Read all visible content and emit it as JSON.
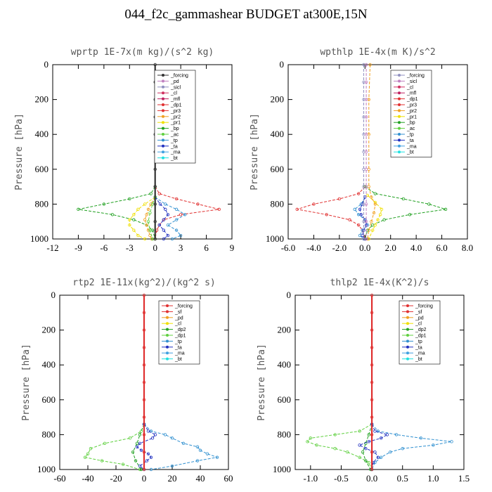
{
  "page_title": "044_f2c_gammashear  BUDGET at300E,15N",
  "chart_data": [
    {
      "type": "line",
      "title": "wprtp  1E-7x(m kg)/(s^2 kg)",
      "xlabel": "",
      "ylabel": "Pressure [hPa]",
      "xlim": [
        -12,
        9
      ],
      "ylim": [
        1000,
        0
      ],
      "xticks": [
        -12,
        -9,
        -6,
        -3,
        0,
        3,
        6,
        9
      ],
      "xtick_labels": [
        "-12",
        "-9",
        "-6",
        "-3",
        "0",
        "3",
        "6",
        "9"
      ],
      "yticks": [
        0,
        200,
        400,
        600,
        800,
        1000
      ],
      "ytick_labels": [
        "0",
        "200",
        "400",
        "600",
        "800",
        "1000"
      ],
      "legend_position": "top-right",
      "legend": [
        {
          "name": "_forcing",
          "color": "#333333"
        },
        {
          "name": "_pd",
          "color": "#c080c0"
        },
        {
          "name": "_sicl",
          "color": "#9090c0"
        },
        {
          "name": "_cl",
          "color": "#d03060"
        },
        {
          "name": "_mfl",
          "color": "#c02060"
        },
        {
          "name": "_dp1",
          "color": "#e03030"
        },
        {
          "name": "_pr3",
          "color": "#e03030"
        },
        {
          "name": "_pr2",
          "color": "#f0a020"
        },
        {
          "name": "_pr1",
          "color": "#f0e000"
        },
        {
          "name": "_bp",
          "color": "#20a020"
        },
        {
          "name": "_ac",
          "color": "#60d040"
        },
        {
          "name": "_tp",
          "color": "#3090d0"
        },
        {
          "name": "_ta",
          "color": "#2030c0"
        },
        {
          "name": "_ma",
          "color": "#40a0e0"
        },
        {
          "name": "_bt",
          "color": "#20e0e0"
        }
      ],
      "series": [
        {
          "name": "_dp1",
          "color": "#e03030",
          "p": [
            700,
            740,
            770,
            800,
            830,
            860,
            890,
            920,
            950,
            1000
          ],
          "x": [
            0,
            0.5,
            2.5,
            5,
            7.5,
            3,
            1,
            0.5,
            0.2,
            0
          ]
        },
        {
          "name": "_bp",
          "color": "#20a020",
          "p": [
            700,
            740,
            770,
            800,
            830,
            860,
            890,
            920,
            950,
            1000
          ],
          "x": [
            0,
            -0.5,
            -3,
            -6,
            -9,
            -5,
            -2.5,
            -1,
            -0.3,
            0
          ]
        },
        {
          "name": "_pr1",
          "color": "#f0e000",
          "p": [
            760,
            800,
            830,
            860,
            890,
            920,
            950,
            980,
            1000
          ],
          "x": [
            0,
            -1.2,
            -2,
            -2.5,
            -3,
            -3,
            -2.5,
            -2,
            -1.2
          ]
        },
        {
          "name": "_pr2",
          "color": "#f0a020",
          "p": [
            760,
            800,
            830,
            860,
            890,
            920,
            950,
            980,
            1000
          ],
          "x": [
            0,
            -0.5,
            -0.8,
            -1,
            -1.2,
            -1,
            -0.8,
            -0.6,
            -0.4
          ]
        },
        {
          "name": "_tp",
          "color": "#3090d0",
          "p": [
            760,
            800,
            830,
            860,
            890,
            920,
            950,
            980,
            1000
          ],
          "x": [
            0,
            1.2,
            2.5,
            3.5,
            2.5,
            1.5,
            2.5,
            3,
            2
          ]
        },
        {
          "name": "_ta",
          "color": "#2030c0",
          "p": [
            760,
            800,
            830,
            860,
            890,
            920,
            950,
            980,
            1000
          ],
          "x": [
            0,
            0.6,
            1.2,
            1.5,
            1,
            0.5,
            1,
            1.5,
            1
          ]
        },
        {
          "name": "_ac",
          "color": "#60d040",
          "p": [
            760,
            800,
            850,
            900,
            950,
            1000
          ],
          "x": [
            0,
            -0.3,
            -0.6,
            -0.8,
            -0.6,
            -0.3
          ]
        },
        {
          "name": "_forcing",
          "color": "#333333",
          "p": [
            0,
            100,
            200,
            300,
            400,
            500,
            600,
            700,
            800,
            900,
            1000
          ],
          "x": [
            0,
            0,
            0,
            0,
            0,
            0,
            0,
            0,
            0,
            0,
            0
          ]
        }
      ]
    },
    {
      "type": "line",
      "title": "wpthlp  1E-4x(m K)/s^2",
      "xlabel": "",
      "ylabel": "Pressure [hPa]",
      "xlim": [
        -6,
        8
      ],
      "ylim": [
        1000,
        0
      ],
      "xticks": [
        -6,
        -4,
        -2,
        0,
        2,
        4,
        6,
        8
      ],
      "xtick_labels": [
        "-6.0",
        "-4.0",
        "-2.0",
        "0.0",
        "2.0",
        "4.0",
        "6.0",
        "8.0"
      ],
      "yticks": [
        0,
        200,
        400,
        600,
        800,
        1000
      ],
      "ytick_labels": [
        "0",
        "200",
        "400",
        "600",
        "800",
        "1000"
      ],
      "legend_position": "top-right",
      "legend": [
        {
          "name": "_forcing",
          "color": "#9090c0"
        },
        {
          "name": "_sicl",
          "color": "#c080c0"
        },
        {
          "name": "_cl",
          "color": "#d03060"
        },
        {
          "name": "_mfl",
          "color": "#c02060"
        },
        {
          "name": "_dp1",
          "color": "#e03030"
        },
        {
          "name": "_pr3",
          "color": "#e03030"
        },
        {
          "name": "_pr2",
          "color": "#f0a020"
        },
        {
          "name": "_pr1",
          "color": "#f0e000"
        },
        {
          "name": "_bp",
          "color": "#20a020"
        },
        {
          "name": "_ac",
          "color": "#60d040"
        },
        {
          "name": "_tp",
          "color": "#3090d0"
        },
        {
          "name": "_ta",
          "color": "#2030c0"
        },
        {
          "name": "_ma",
          "color": "#40a0e0"
        },
        {
          "name": "_bt",
          "color": "#20e0e0"
        }
      ],
      "series": [
        {
          "name": "_dp1",
          "color": "#e03030",
          "p": [
            700,
            740,
            770,
            800,
            830,
            860,
            890,
            920,
            950,
            1000
          ],
          "x": [
            0,
            -0.5,
            -2,
            -4,
            -5.3,
            -3,
            -1.2,
            -0.5,
            -0.2,
            0
          ]
        },
        {
          "name": "_bp",
          "color": "#20a020",
          "p": [
            700,
            740,
            770,
            800,
            830,
            860,
            890,
            920,
            950,
            1000
          ],
          "x": [
            0,
            0.8,
            3,
            5,
            6.3,
            3.5,
            1.5,
            0.6,
            0.2,
            0
          ]
        },
        {
          "name": "_pr1",
          "color": "#f0e000",
          "p": [
            750,
            790,
            830,
            860,
            890,
            920,
            950,
            1000
          ],
          "x": [
            0.2,
            0.8,
            1.3,
            1.2,
            1,
            0.8,
            0.6,
            0.3
          ]
        },
        {
          "name": "_pr2",
          "color": "#f0a020",
          "p": [
            0,
            200,
            400,
            600,
            700,
            760,
            800,
            850,
            900,
            950,
            1000
          ],
          "x": [
            0.4,
            0.3,
            0.3,
            0.3,
            0.3,
            0.5,
            0.8,
            0.7,
            0.5,
            0.3,
            0.2
          ]
        },
        {
          "name": "_tp",
          "color": "#3090d0",
          "p": [
            760,
            800,
            830,
            860,
            890,
            920,
            950,
            980,
            1000
          ],
          "x": [
            0,
            -0.3,
            -0.8,
            -0.5,
            0,
            0.2,
            -0.2,
            -0.4,
            -0.1
          ]
        },
        {
          "name": "_ta",
          "color": "#2030c0",
          "p": [
            760,
            800,
            830,
            860,
            890,
            920,
            950,
            980,
            1000
          ],
          "x": [
            0,
            -0.2,
            -0.4,
            -0.3,
            0,
            0.1,
            -0.1,
            -0.2,
            0
          ]
        },
        {
          "name": "_forcing",
          "color": "#9090c0",
          "p": [
            0,
            100,
            200,
            300,
            400,
            500,
            600,
            700,
            800,
            900,
            1000
          ],
          "x": [
            -0.1,
            -0.1,
            -0.1,
            -0.1,
            -0.1,
            -0.1,
            -0.1,
            -0.1,
            -0.1,
            -0.1,
            -0.1
          ]
        },
        {
          "name": "_sicl",
          "color": "#c080c0",
          "p": [
            0,
            100,
            200,
            300,
            400,
            500,
            600,
            700,
            800,
            900,
            1000
          ],
          "x": [
            0.1,
            0.1,
            0.1,
            0.1,
            0.1,
            0.1,
            0.1,
            0.1,
            0.1,
            0.1,
            0.1
          ]
        }
      ]
    },
    {
      "type": "line",
      "title": "rtp2  1E-11x(kg^2)/(kg^2 s)",
      "xlabel": "",
      "ylabel": "Pressure [hPa]",
      "xlim": [
        -60,
        60
      ],
      "ylim": [
        1000,
        0
      ],
      "xticks": [
        -60,
        -40,
        -20,
        0,
        20,
        40,
        60
      ],
      "xtick_labels": [
        "-60",
        "-40",
        "-20",
        "0",
        "20",
        "40",
        "60"
      ],
      "yticks": [
        0,
        200,
        400,
        600,
        800,
        1000
      ],
      "ytick_labels": [
        "0",
        "200",
        "400",
        "600",
        "800",
        "1000"
      ],
      "legend_position": "top-right",
      "legend": [
        {
          "name": "_forcing",
          "color": "#e03030"
        },
        {
          "name": "_sf",
          "color": "#e03030"
        },
        {
          "name": "_pd",
          "color": "#f0a020"
        },
        {
          "name": "_cl",
          "color": "#f0e000"
        },
        {
          "name": "_dp2",
          "color": "#20a020"
        },
        {
          "name": "_dp1",
          "color": "#60d040"
        },
        {
          "name": "_tp",
          "color": "#3090d0"
        },
        {
          "name": "_ta",
          "color": "#2030c0"
        },
        {
          "name": "_ma",
          "color": "#40a0e0"
        },
        {
          "name": "_bt",
          "color": "#20e0e0"
        }
      ],
      "series": [
        {
          "name": "_dp1",
          "color": "#60d040",
          "p": [
            740,
            780,
            820,
            850,
            880,
            910,
            930,
            950,
            970,
            1000
          ],
          "x": [
            0,
            -2,
            -10,
            -28,
            -38,
            -40,
            -42,
            -30,
            -15,
            -3
          ]
        },
        {
          "name": "_dp2",
          "color": "#20a020",
          "p": [
            740,
            800,
            850,
            900,
            950,
            1000
          ],
          "x": [
            0,
            -3,
            -5,
            -8,
            -6,
            -2
          ]
        },
        {
          "name": "_tp",
          "color": "#3090d0",
          "p": [
            740,
            780,
            800,
            820,
            850,
            870,
            890,
            910,
            930,
            950,
            980,
            1000
          ],
          "x": [
            0,
            5,
            15,
            20,
            28,
            38,
            40,
            45,
            52,
            38,
            20,
            5
          ]
        },
        {
          "name": "_ta",
          "color": "#2030c0",
          "p": [
            740,
            780,
            800,
            820,
            850,
            870,
            890,
            910,
            930,
            950,
            980,
            1000
          ],
          "x": [
            0,
            3,
            8,
            6,
            -3,
            -5,
            -2,
            3,
            5,
            2,
            -3,
            0
          ]
        },
        {
          "name": "_forcing",
          "color": "#e03030",
          "p": [
            0,
            100,
            200,
            300,
            400,
            500,
            600,
            700,
            800,
            900,
            1000
          ],
          "x": [
            0,
            0,
            0,
            0,
            0,
            0,
            0,
            0,
            0,
            0,
            0
          ]
        }
      ]
    },
    {
      "type": "line",
      "title": "thlp2  1E-4x(K^2)/s",
      "xlabel": "",
      "ylabel": "Pressure [hPa]",
      "xlim": [
        -1.25,
        1.5
      ],
      "ylim": [
        1000,
        0
      ],
      "xticks": [
        -1,
        -0.5,
        0,
        0.5,
        1,
        1.5
      ],
      "xtick_labels": [
        "-1.0",
        "-0.5",
        "0.0",
        "0.5",
        "1.0",
        "1.5"
      ],
      "yticks": [
        0,
        200,
        400,
        600,
        800,
        1000
      ],
      "ytick_labels": [
        "0",
        "200",
        "400",
        "600",
        "800",
        "1000"
      ],
      "legend_position": "top-right",
      "legend": [
        {
          "name": "_forcing",
          "color": "#e03030"
        },
        {
          "name": "_sf",
          "color": "#e03030"
        },
        {
          "name": "_pd",
          "color": "#f0a020"
        },
        {
          "name": "_cl",
          "color": "#f0e000"
        },
        {
          "name": "_dp2",
          "color": "#20a020"
        },
        {
          "name": "_dp1",
          "color": "#60d040"
        },
        {
          "name": "_tp",
          "color": "#3090d0"
        },
        {
          "name": "_ta",
          "color": "#2030c0"
        },
        {
          "name": "_ma",
          "color": "#40a0e0"
        },
        {
          "name": "_bt",
          "color": "#20e0e0"
        }
      ],
      "series": [
        {
          "name": "_dp1",
          "color": "#60d040",
          "p": [
            740,
            780,
            800,
            820,
            840,
            860,
            880,
            900,
            930,
            960,
            1000
          ],
          "x": [
            0,
            -0.2,
            -0.6,
            -1.0,
            -1.05,
            -0.9,
            -0.6,
            -0.4,
            -0.2,
            -0.05,
            0
          ]
        },
        {
          "name": "_dp2",
          "color": "#20a020",
          "p": [
            740,
            800,
            850,
            900,
            950,
            1000
          ],
          "x": [
            0,
            -0.05,
            -0.1,
            -0.15,
            -0.1,
            -0.02
          ]
        },
        {
          "name": "_tp",
          "color": "#3090d0",
          "p": [
            740,
            780,
            800,
            820,
            840,
            860,
            880,
            900,
            930,
            960,
            1000
          ],
          "x": [
            0,
            0.1,
            0.4,
            0.8,
            1.3,
            1.0,
            0.5,
            0.3,
            0.15,
            0.05,
            0
          ]
        },
        {
          "name": "_ta",
          "color": "#2030c0",
          "p": [
            740,
            780,
            800,
            820,
            840,
            860,
            880,
            900,
            930,
            960,
            1000
          ],
          "x": [
            0,
            0.05,
            0.25,
            0.15,
            -0.05,
            -0.2,
            -0.1,
            0.05,
            0.1,
            0.02,
            0
          ]
        },
        {
          "name": "_forcing",
          "color": "#e03030",
          "p": [
            0,
            100,
            200,
            300,
            400,
            500,
            600,
            700,
            800,
            900,
            1000
          ],
          "x": [
            0,
            0,
            0,
            0,
            0,
            0,
            0,
            0,
            0,
            0,
            0
          ]
        }
      ]
    }
  ]
}
